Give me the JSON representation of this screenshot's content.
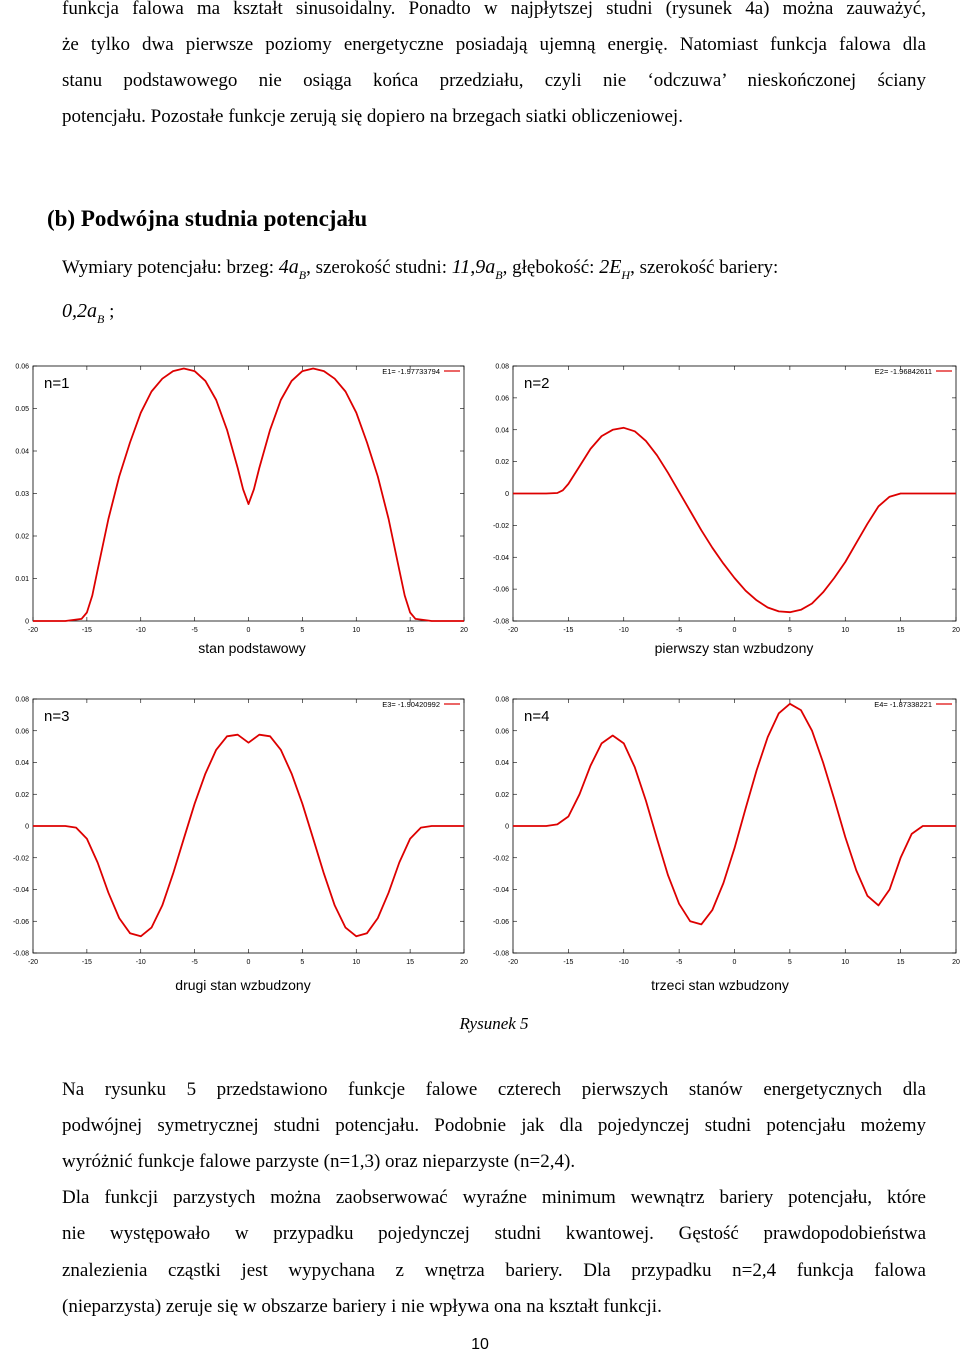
{
  "intro": {
    "lines": [
      "funkcja falowa ma kształt sinusoidalny. Ponadto w najpłytszej studni (rysunek 4a) można zauważyć,",
      "że tylko dwa pierwsze poziomy energetyczne posiadają ujemną energię. Natomiast funkcja falowa dla",
      "stanu podstawowego nie osiąga końca przedziału, czyli nie ‘odczuwa’ nieskończonej ściany",
      "potencjału. Pozostałe funkcje zerują się dopiero na brzegach siatki obliczeniowej."
    ]
  },
  "section": {
    "heading": "(b) Podwójna studnia potencjału",
    "dims_prefix": "Wymiary potencjału: brzeg: ",
    "edge_value": "4a",
    "edge_sub": "B",
    "width_label": ", szerokość studni: ",
    "width_value": "11,9a",
    "width_sub": "B",
    "depth_label": ", głębokość: ",
    "depth_value": "2E",
    "depth_sub": "H",
    "barrier_label": ", szerokość bariery:",
    "barrier_value": "0,2a",
    "barrier_sub": "B",
    "barrier_suffix": " ;"
  },
  "chart_data": [
    {
      "type": "line",
      "panel_label": "n=1",
      "energy_label": "E1= -1.97733794",
      "caption": "stan podstawowy",
      "color": "#dd0000",
      "x_ticks": [
        "-20",
        "-15",
        "-10",
        "-5",
        "0",
        "5",
        "10",
        "15",
        "20"
      ],
      "y_ticks": [
        "0",
        "0.01",
        "0.02",
        "0.03",
        "0.04",
        "0.05",
        "0.06"
      ],
      "xlim": [
        -20,
        20
      ],
      "ylim": [
        0,
        0.06
      ],
      "points": [
        [
          -20,
          0
        ],
        [
          -17,
          0
        ],
        [
          -15.5,
          0.0005
        ],
        [
          -15,
          0.002
        ],
        [
          -14.5,
          0.006
        ],
        [
          -14,
          0.012
        ],
        [
          -13,
          0.024
        ],
        [
          -12,
          0.034
        ],
        [
          -11,
          0.042
        ],
        [
          -10,
          0.049
        ],
        [
          -9,
          0.054
        ],
        [
          -8,
          0.057
        ],
        [
          -7,
          0.0588
        ],
        [
          -6,
          0.0594
        ],
        [
          -5,
          0.0588
        ],
        [
          -4,
          0.0565
        ],
        [
          -3,
          0.052
        ],
        [
          -2,
          0.045
        ],
        [
          -1,
          0.036
        ],
        [
          -0.5,
          0.031
        ],
        [
          0,
          0.0275
        ],
        [
          0.5,
          0.031
        ],
        [
          1,
          0.036
        ],
        [
          2,
          0.045
        ],
        [
          3,
          0.052
        ],
        [
          4,
          0.0565
        ],
        [
          5,
          0.0588
        ],
        [
          6,
          0.0594
        ],
        [
          7,
          0.0588
        ],
        [
          8,
          0.057
        ],
        [
          9,
          0.054
        ],
        [
          10,
          0.049
        ],
        [
          11,
          0.042
        ],
        [
          12,
          0.034
        ],
        [
          13,
          0.024
        ],
        [
          14,
          0.012
        ],
        [
          14.5,
          0.006
        ],
        [
          15,
          0.002
        ],
        [
          15.5,
          0.0005
        ],
        [
          17,
          0
        ],
        [
          20,
          0
        ]
      ]
    },
    {
      "type": "line",
      "panel_label": "n=2",
      "energy_label": "E2= -1.96842611",
      "caption": "pierwszy stan wzbudzony",
      "color": "#dd0000",
      "x_ticks": [
        "-20",
        "-15",
        "-10",
        "-5",
        "0",
        "5",
        "10",
        "15",
        "20"
      ],
      "y_ticks": [
        "-0.08",
        "-0.06",
        "-0.04",
        "-0.02",
        "0",
        "0.02",
        "0.04",
        "0.06",
        "0.08"
      ],
      "xlim": [
        -20,
        20
      ],
      "ylim": [
        -0.08,
        0.08
      ],
      "points": [
        [
          -20,
          0
        ],
        [
          -17,
          0
        ],
        [
          -16,
          0.0003
        ],
        [
          -15.5,
          0.002
        ],
        [
          -15,
          0.006
        ],
        [
          -14,
          0.017
        ],
        [
          -13,
          0.028
        ],
        [
          -12,
          0.036
        ],
        [
          -11,
          0.04
        ],
        [
          -10,
          0.0412
        ],
        [
          -9,
          0.039
        ],
        [
          -8,
          0.033
        ],
        [
          -7,
          0.024
        ],
        [
          -6,
          0.013
        ],
        [
          -5,
          0.001
        ],
        [
          -4,
          -0.011
        ],
        [
          -3,
          -0.023
        ],
        [
          -2,
          -0.034
        ],
        [
          -1,
          -0.044
        ],
        [
          0,
          -0.053
        ],
        [
          1,
          -0.061
        ],
        [
          2,
          -0.067
        ],
        [
          3,
          -0.0715
        ],
        [
          4,
          -0.074
        ],
        [
          5,
          -0.0745
        ],
        [
          6,
          -0.073
        ],
        [
          7,
          -0.069
        ],
        [
          8,
          -0.062
        ],
        [
          9,
          -0.053
        ],
        [
          10,
          -0.043
        ],
        [
          11,
          -0.031
        ],
        [
          12,
          -0.019
        ],
        [
          13,
          -0.008
        ],
        [
          14,
          -0.002
        ],
        [
          15,
          0
        ],
        [
          20,
          0
        ]
      ]
    },
    {
      "type": "line",
      "panel_label": "n=3",
      "energy_label": "E3= -1.90420992",
      "caption": "drugi stan wzbudzony",
      "color": "#dd0000",
      "x_ticks": [
        "-20",
        "-15",
        "-10",
        "-5",
        "0",
        "5",
        "10",
        "15",
        "20"
      ],
      "y_ticks": [
        "-0.08",
        "-0.06",
        "-0.04",
        "-0.02",
        "0",
        "0.02",
        "0.04",
        "0.06",
        "0.08"
      ],
      "xlim": [
        -20,
        20
      ],
      "ylim": [
        -0.08,
        0.08
      ],
      "points": [
        [
          -20,
          0
        ],
        [
          -17,
          0
        ],
        [
          -16,
          -0.001
        ],
        [
          -15,
          -0.008
        ],
        [
          -14,
          -0.023
        ],
        [
          -13,
          -0.042
        ],
        [
          -12,
          -0.058
        ],
        [
          -11,
          -0.0675
        ],
        [
          -10,
          -0.0695
        ],
        [
          -9,
          -0.064
        ],
        [
          -8,
          -0.05
        ],
        [
          -7,
          -0.03
        ],
        [
          -6,
          -0.008
        ],
        [
          -5,
          0.014
        ],
        [
          -4,
          0.033
        ],
        [
          -3,
          0.048
        ],
        [
          -2,
          0.0565
        ],
        [
          -1,
          0.0575
        ],
        [
          0,
          0.0525
        ],
        [
          1,
          0.0575
        ],
        [
          2,
          0.0565
        ],
        [
          3,
          0.048
        ],
        [
          4,
          0.033
        ],
        [
          5,
          0.014
        ],
        [
          6,
          -0.008
        ],
        [
          7,
          -0.03
        ],
        [
          8,
          -0.05
        ],
        [
          9,
          -0.064
        ],
        [
          10,
          -0.0695
        ],
        [
          11,
          -0.0675
        ],
        [
          12,
          -0.058
        ],
        [
          13,
          -0.042
        ],
        [
          14,
          -0.023
        ],
        [
          15,
          -0.008
        ],
        [
          16,
          -0.001
        ],
        [
          17,
          0
        ],
        [
          20,
          0
        ]
      ]
    },
    {
      "type": "line",
      "panel_label": "n=4",
      "energy_label": "E4= -1.87338221",
      "caption": "trzeci stan wzbudzony",
      "color": "#dd0000",
      "x_ticks": [
        "-20",
        "-15",
        "-10",
        "-5",
        "0",
        "5",
        "10",
        "15",
        "20"
      ],
      "y_ticks": [
        "-0.08",
        "-0.06",
        "-0.04",
        "-0.02",
        "0",
        "0.02",
        "0.04",
        "0.06",
        "0.08"
      ],
      "xlim": [
        -20,
        20
      ],
      "ylim": [
        -0.08,
        0.08
      ],
      "points": [
        [
          -20,
          0
        ],
        [
          -17,
          0
        ],
        [
          -16,
          0.001
        ],
        [
          -15,
          0.006
        ],
        [
          -14,
          0.02
        ],
        [
          -13,
          0.038
        ],
        [
          -12,
          0.052
        ],
        [
          -11,
          0.057
        ],
        [
          -10,
          0.052
        ],
        [
          -9,
          0.037
        ],
        [
          -8,
          0.016
        ],
        [
          -7,
          -0.008
        ],
        [
          -6,
          -0.031
        ],
        [
          -5,
          -0.049
        ],
        [
          -4,
          -0.06
        ],
        [
          -3,
          -0.062
        ],
        [
          -2,
          -0.053
        ],
        [
          -1,
          -0.036
        ],
        [
          0,
          -0.014
        ],
        [
          1,
          0.011
        ],
        [
          2,
          0.035
        ],
        [
          3,
          0.056
        ],
        [
          4,
          0.071
        ],
        [
          5,
          0.077
        ],
        [
          6,
          0.073
        ],
        [
          7,
          0.06
        ],
        [
          8,
          0.04
        ],
        [
          9,
          0.017
        ],
        [
          10,
          -0.007
        ],
        [
          11,
          -0.028
        ],
        [
          12,
          -0.044
        ],
        [
          13,
          -0.05
        ],
        [
          14,
          -0.04
        ],
        [
          15,
          -0.02
        ],
        [
          16,
          -0.005
        ],
        [
          17,
          0
        ],
        [
          20,
          0
        ]
      ]
    }
  ],
  "figure_caption": "Rysunek 5",
  "body": {
    "p1": [
      "Na rysunku 5 przedstawiono funkcje falowe czterech pierwszych stanów energetycznych dla",
      "podwójnej symetrycznej studni potencjału. Podobnie jak dla pojedynczej studni potencjału możemy",
      "wyróżnić funkcje falowe parzyste (n=1,3) oraz nieparzyste (n=2,4)."
    ],
    "p2": [
      "Dla funkcji parzystych można zaobserwować wyraźne minimum wewnątrz bariery potencjału, które",
      "nie występowało w przypadku pojedynczej studni kwantowej. Gęstość prawdopodobieństwa",
      "znalezienia cząstki jest wypychana z wnętrza bariery. Dla przypadku n=2,4 funkcja falowa",
      "(nieparzysta) zeruje się w obszarze bariery i nie wpływa ona na kształt funkcji."
    ]
  },
  "page_number": "10"
}
